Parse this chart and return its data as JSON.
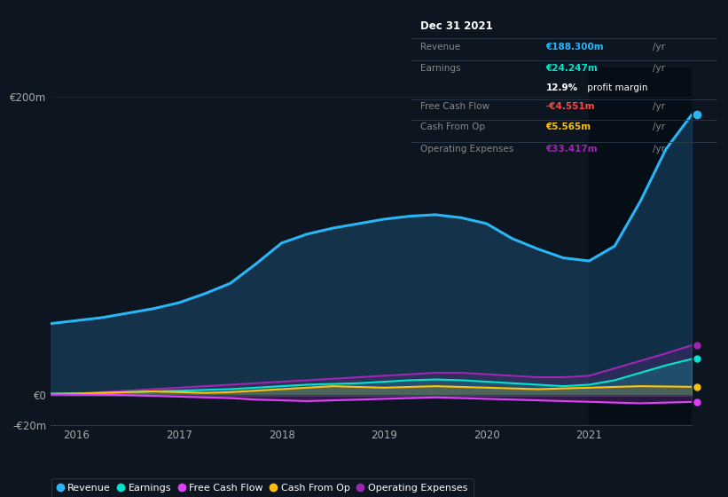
{
  "bg_color": "#0d1520",
  "chart_bg": "#0d1520",
  "years": [
    2015.75,
    2016.0,
    2016.25,
    2016.5,
    2016.75,
    2017.0,
    2017.25,
    2017.5,
    2017.75,
    2018.0,
    2018.25,
    2018.5,
    2018.75,
    2019.0,
    2019.25,
    2019.5,
    2019.75,
    2020.0,
    2020.25,
    2020.5,
    2020.75,
    2021.0,
    2021.25,
    2021.5,
    2021.75,
    2022.0
  ],
  "revenue": [
    48,
    50,
    52,
    55,
    58,
    62,
    68,
    75,
    88,
    102,
    108,
    112,
    115,
    118,
    120,
    121,
    119,
    115,
    105,
    98,
    92,
    90,
    100,
    130,
    165,
    188
  ],
  "earnings": [
    1.0,
    1.2,
    1.5,
    2.0,
    2.5,
    3.0,
    3.5,
    4.0,
    5.0,
    6.0,
    7.0,
    7.5,
    8.0,
    9.0,
    10.0,
    10.5,
    10.0,
    9.0,
    8.0,
    7.0,
    6.0,
    7.0,
    10.0,
    15.0,
    20.0,
    24.247
  ],
  "free_cash_flow": [
    0.5,
    0.3,
    0.2,
    0.0,
    -0.5,
    -1.0,
    -1.5,
    -2.0,
    -3.0,
    -3.5,
    -4.0,
    -3.5,
    -3.0,
    -2.5,
    -2.0,
    -1.5,
    -2.0,
    -2.5,
    -3.0,
    -3.5,
    -4.0,
    -4.5,
    -5.0,
    -5.5,
    -5.0,
    -4.551
  ],
  "cash_from_op": [
    0.8,
    1.0,
    1.5,
    2.0,
    2.5,
    2.0,
    1.5,
    2.0,
    3.0,
    4.0,
    5.0,
    6.0,
    5.5,
    5.0,
    5.5,
    6.0,
    5.5,
    5.0,
    4.5,
    4.0,
    4.5,
    5.0,
    5.5,
    6.0,
    5.8,
    5.565
  ],
  "operating_expenses": [
    0.5,
    1.0,
    2.0,
    3.0,
    4.0,
    5.0,
    6.0,
    7.0,
    8.0,
    9.0,
    10.0,
    11.0,
    12.0,
    13.0,
    14.0,
    15.0,
    15.0,
    14.0,
    13.0,
    12.0,
    12.0,
    13.0,
    18.0,
    23.0,
    28.0,
    33.417
  ],
  "revenue_color": "#29b6f6",
  "earnings_color": "#00e5cc",
  "free_cash_flow_color": "#e040fb",
  "cash_from_op_color": "#ffc107",
  "operating_expenses_color": "#9c27b0",
  "revenue_fill_color": "#1a4a6b",
  "ylim": [
    -20,
    220
  ],
  "xticks": [
    2016,
    2017,
    2018,
    2019,
    2020,
    2021
  ],
  "panel_title": "Dec 31 2021",
  "panel_revenue_label": "Revenue",
  "panel_revenue_value": "€188.300m",
  "panel_earnings_label": "Earnings",
  "panel_earnings_value": "€24.247m",
  "panel_profit_margin": "12.9%",
  "panel_fcf_label": "Free Cash Flow",
  "panel_fcf_value": "-€4.551m",
  "panel_cashop_label": "Cash From Op",
  "panel_cashop_value": "€5.565m",
  "panel_opex_label": "Operating Expenses",
  "panel_opex_value": "€33.417m",
  "legend_labels": [
    "Revenue",
    "Earnings",
    "Free Cash Flow",
    "Cash From Op",
    "Operating Expenses"
  ]
}
